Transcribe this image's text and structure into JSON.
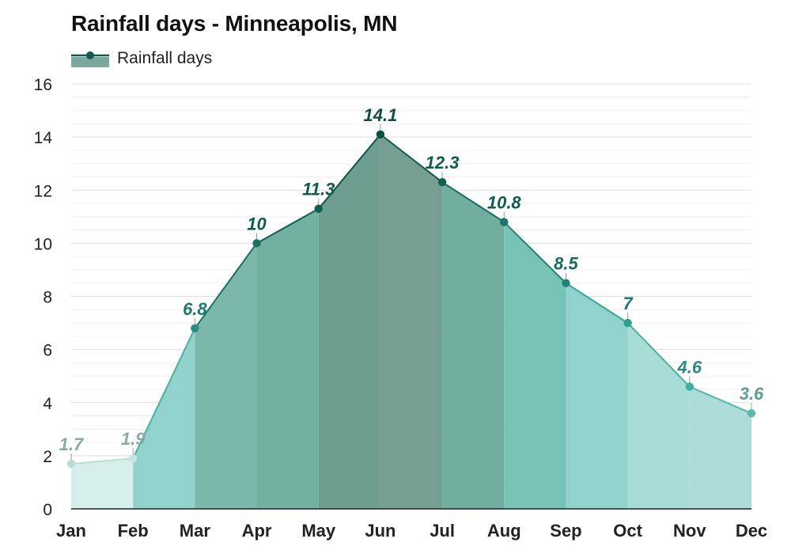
{
  "chart_data": {
    "type": "area",
    "title": "Rainfall days - Minneapolis, MN",
    "xlabel": "",
    "ylabel": "",
    "ylim": [
      0,
      16
    ],
    "yticks": [
      0,
      2,
      4,
      6,
      8,
      10,
      12,
      14,
      16
    ],
    "grid": true,
    "legend_position": "top-left",
    "categories": [
      "Jan",
      "Feb",
      "Mar",
      "Apr",
      "May",
      "Jun",
      "Jul",
      "Aug",
      "Sep",
      "Oct",
      "Nov",
      "Dec"
    ],
    "series": [
      {
        "name": "Rainfall days",
        "values": [
          1.7,
          1.9,
          6.8,
          10,
          11.3,
          14.1,
          12.3,
          10.8,
          8.5,
          7,
          4.6,
          3.6
        ],
        "data_labels": [
          "1.7",
          "1.9",
          "6.8",
          "10",
          "11.3",
          "14.1",
          "12.3",
          "10.8",
          "8.5",
          "7",
          "4.6",
          "3.6"
        ]
      }
    ],
    "colors": {
      "legend_marker": "#0f5a4f",
      "legend_fill": "#7aa79c",
      "gridline": "#e3e3e3",
      "axis": "#222222"
    },
    "column_fills": [
      "#d5eeeb",
      "#91d3cc",
      "#7bb7ab",
      "#72b0a2",
      "#6e9e91",
      "#779e92",
      "#72aea0",
      "#77c3b5",
      "#91d3cc",
      "#a8ddd7",
      "#acdcd8",
      "#c0e5e2"
    ],
    "point_colors": [
      "#bcdcd8",
      "#c8e4e0",
      "#2a8d80",
      "#1a6f61",
      "#115e51",
      "#0d4f43",
      "#135e52",
      "#1c7566",
      "#228477",
      "#2ea090",
      "#41b0a1",
      "#59b9ad"
    ],
    "line_colors": [
      "#bfdcd9",
      "#4ab0a3",
      "#1c7163",
      "#125f52",
      "#0e5145",
      "#115a4e",
      "#186b5d",
      "#208172",
      "#35a595",
      "#49b0a2",
      "#55b7ab"
    ],
    "label_colors": [
      "#8aa9a5",
      "#8aa9a5",
      "#1f7a6d",
      "#105b4e",
      "#105b4e",
      "#0d4f43",
      "#105b4e",
      "#105b4e",
      "#1a6b5e",
      "#1f7a6d",
      "#2e8a7d",
      "#5f9e95"
    ]
  }
}
